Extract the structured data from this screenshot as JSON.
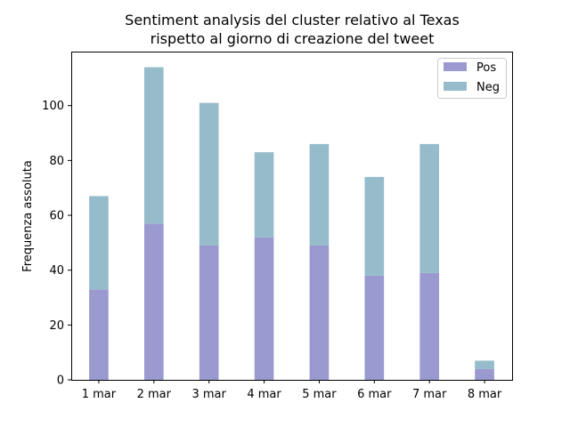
{
  "chart_data": {
    "type": "bar",
    "stacked": true,
    "title_line1": "Sentiment analysis del cluster relativo al Texas",
    "title_line2": "rispetto al giorno di creazione del tweet",
    "xlabel": "",
    "ylabel": "Frequenza assoluta",
    "categories": [
      "1 mar",
      "2 mar",
      "3 mar",
      "4 mar",
      "5 mar",
      "6 mar",
      "7 mar",
      "8 mar"
    ],
    "series": [
      {
        "name": "Pos",
        "color": "#9a9ad0",
        "values": [
          33,
          57,
          49,
          52,
          49,
          38,
          39,
          4
        ]
      },
      {
        "name": "Neg",
        "color": "#96bccb",
        "values": [
          34,
          57,
          52,
          31,
          37,
          36,
          47,
          3
        ]
      }
    ],
    "ylim": [
      0,
      119.7
    ],
    "yticks": [
      0,
      20,
      40,
      60,
      80,
      100
    ],
    "grid": false,
    "legend_position": "top-right"
  }
}
